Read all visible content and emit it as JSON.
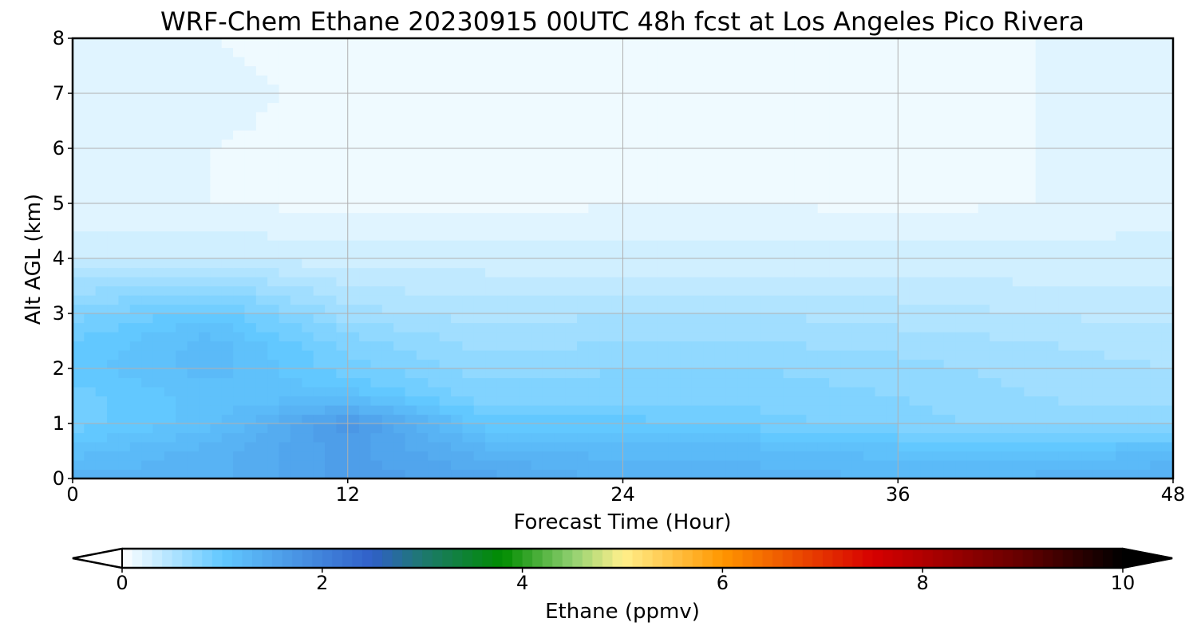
{
  "chart_data": {
    "type": "heatmap",
    "title": "WRF-Chem Ethane  20230915 00UTC 48h fcst at Los Angeles Pico Rivera",
    "xlabel": "Forecast Time (Hour)",
    "ylabel": "Alt AGL (km)",
    "x_ticks": [
      "0",
      "12",
      "24",
      "36",
      "48"
    ],
    "y_ticks": [
      "0",
      "1",
      "2",
      "3",
      "4",
      "5",
      "6",
      "7",
      "8"
    ],
    "xlim": [
      0,
      48
    ],
    "ylim": [
      0,
      8
    ],
    "grid": true,
    "x_hours": [
      0,
      6,
      12,
      18,
      24,
      30,
      36,
      42,
      48
    ],
    "y_km": [
      0,
      0.5,
      1,
      1.5,
      2,
      2.5,
      3,
      3.5,
      4,
      5,
      6,
      7,
      8
    ],
    "values_ppmv": [
      [
        1.3,
        1.3,
        1.6,
        1.5,
        1.3,
        1.3,
        1.25,
        1.3,
        1.35
      ],
      [
        1.1,
        1.3,
        1.6,
        1.3,
        1.2,
        1.2,
        1.1,
        1.0,
        1.2
      ],
      [
        0.9,
        1.1,
        1.7,
        1.0,
        1.0,
        0.9,
        0.8,
        0.7,
        0.7
      ],
      [
        0.9,
        1.1,
        1.1,
        0.8,
        0.8,
        0.8,
        0.75,
        0.65,
        0.6
      ],
      [
        1.0,
        1.2,
        0.9,
        0.7,
        0.75,
        0.75,
        0.7,
        0.6,
        0.55
      ],
      [
        0.95,
        1.2,
        0.8,
        0.6,
        0.65,
        0.65,
        0.6,
        0.55,
        0.5
      ],
      [
        0.8,
        1.0,
        0.6,
        0.5,
        0.55,
        0.55,
        0.5,
        0.45,
        0.4
      ],
      [
        0.6,
        0.7,
        0.45,
        0.4,
        0.4,
        0.4,
        0.4,
        0.35,
        0.35
      ],
      [
        0.3,
        0.35,
        0.3,
        0.3,
        0.3,
        0.3,
        0.3,
        0.3,
        0.3
      ],
      [
        0.18,
        0.15,
        0.12,
        0.1,
        0.15,
        0.15,
        0.12,
        0.15,
        0.2
      ],
      [
        0.18,
        0.15,
        0.12,
        0.1,
        0.1,
        0.1,
        0.15,
        0.15,
        0.18
      ],
      [
        0.2,
        0.18,
        0.12,
        0.1,
        0.1,
        0.12,
        0.15,
        0.15,
        0.18
      ],
      [
        0.18,
        0.15,
        0.1,
        0.1,
        0.12,
        0.15,
        0.15,
        0.15,
        0.15
      ]
    ],
    "colorbar": {
      "label": "Ethane  (ppmv)",
      "ticks": [
        "0",
        "2",
        "4",
        "6",
        "8",
        "10"
      ],
      "min": 0,
      "max": 10,
      "extend": "both",
      "stops": [
        {
          "v": 0.0,
          "c": "#ffffff"
        },
        {
          "v": 1.0,
          "c": "#62c8ff"
        },
        {
          "v": 2.5,
          "c": "#3060c8"
        },
        {
          "v": 3.0,
          "c": "#1e7870"
        },
        {
          "v": 3.8,
          "c": "#008c00"
        },
        {
          "v": 4.5,
          "c": "#90d070"
        },
        {
          "v": 5.0,
          "c": "#fff08c"
        },
        {
          "v": 6.0,
          "c": "#ff9600"
        },
        {
          "v": 7.5,
          "c": "#d70000"
        },
        {
          "v": 9.0,
          "c": "#640000"
        },
        {
          "v": 10.0,
          "c": "#000000"
        }
      ]
    }
  }
}
